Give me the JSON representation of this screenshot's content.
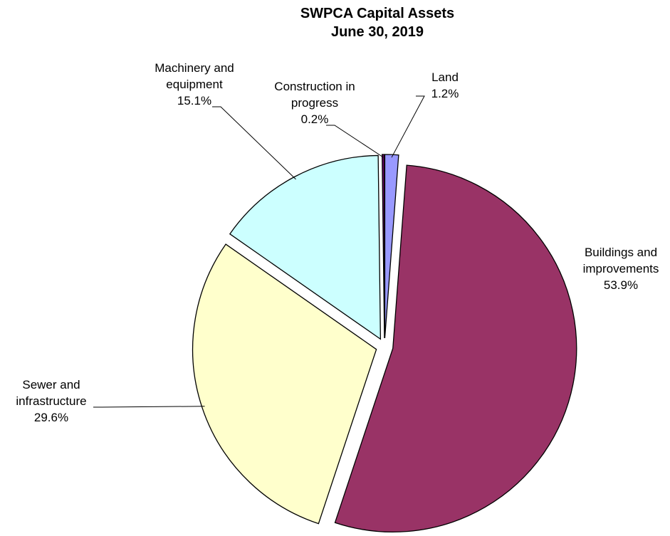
{
  "chart_data": {
    "type": "pie",
    "title": "SWPCA Capital Assets",
    "subtitle": "June 30, 2019",
    "categories": [
      "Land",
      "Buildings and improvements",
      "Sewer and infrastructure",
      "Machinery and equipment",
      "Construction in progress"
    ],
    "values": [
      1.2,
      53.9,
      29.6,
      15.1,
      0.2
    ],
    "value_labels": [
      "1.2%",
      "53.9%",
      "29.6%",
      "15.1%",
      "0.2%"
    ],
    "colors": [
      "#9999ff",
      "#993366",
      "#ffffcc",
      "#ccffff",
      "#660066"
    ]
  }
}
